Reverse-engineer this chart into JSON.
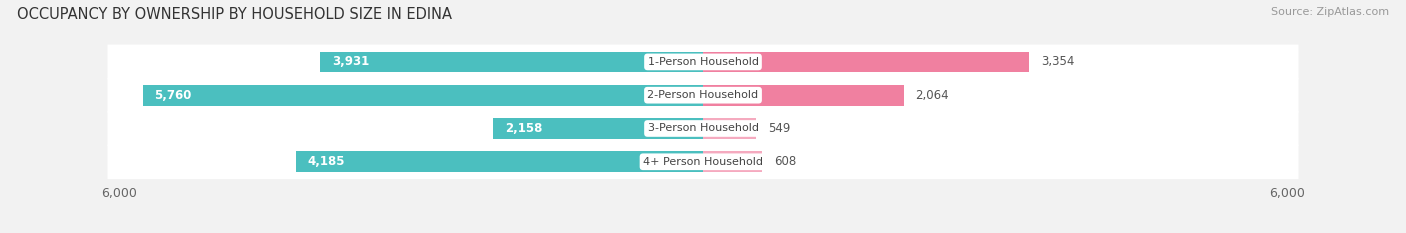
{
  "title": "OCCUPANCY BY OWNERSHIP BY HOUSEHOLD SIZE IN EDINA",
  "source": "Source: ZipAtlas.com",
  "categories": [
    "1-Person Household",
    "2-Person Household",
    "3-Person Household",
    "4+ Person Household"
  ],
  "owner_values": [
    3931,
    5760,
    2158,
    4185
  ],
  "renter_values": [
    3354,
    2064,
    549,
    608
  ],
  "max_scale": 6000,
  "owner_color": "#4BBFBF",
  "renter_color": "#F080A0",
  "owner_color_light": "#85D4D4",
  "renter_color_light": "#F5AABF",
  "bg_color": "#f2f2f2",
  "row_bg_color": "#e8e8e8",
  "title_fontsize": 10.5,
  "label_fontsize": 8.5,
  "tick_fontsize": 9,
  "source_fontsize": 8,
  "legend_fontsize": 9,
  "inside_label_threshold": 800
}
